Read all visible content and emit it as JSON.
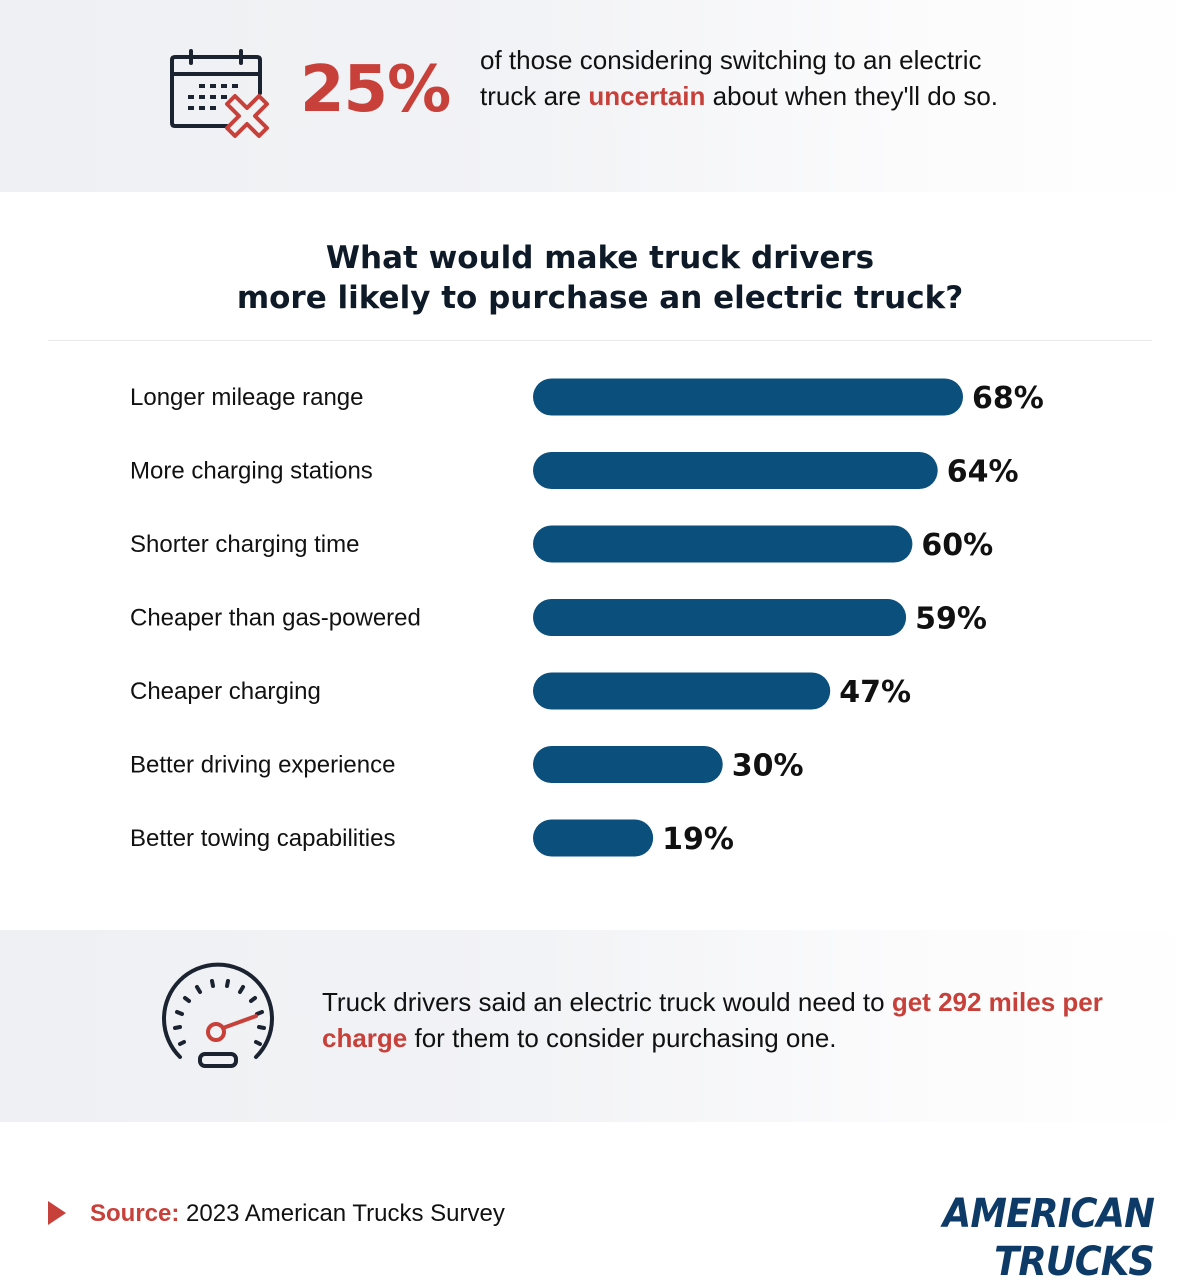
{
  "header_stat": {
    "icon": "calendar-x-icon",
    "value": "25%",
    "text_before": "of those considering switching to an electric truck are",
    "highlight": "uncertain",
    "text_after": "about when they'll do so."
  },
  "chart_data": {
    "type": "bar",
    "orientation": "horizontal",
    "title_line1": "What would make truck drivers",
    "title_line2": "more likely to purchase an electric truck?",
    "categories": [
      "Longer mileage range",
      "More charging stations",
      "Shorter charging time",
      "Cheaper than gas-powered",
      "Cheaper charging",
      "Better driving experience",
      "Better towing capabilities"
    ],
    "values": [
      68,
      64,
      60,
      59,
      47,
      30,
      19
    ],
    "value_labels": [
      "68%",
      "64%",
      "60%",
      "59%",
      "47%",
      "30%",
      "19%"
    ],
    "unit": "%",
    "bar_color": "#0b4f7c",
    "grid": false,
    "legend": "none"
  },
  "fact": {
    "icon": "speedometer-icon",
    "text_before": "Truck drivers said an electric truck would need to",
    "highlight": "get 292 miles per charge",
    "text_after": "for them to consider purchasing one."
  },
  "footer": {
    "source_label": "Source:",
    "source_text": "2023 American Trucks Survey",
    "brand": "AMERICAN TRUCKS"
  },
  "colors": {
    "accent": "#c8403a",
    "bar": "#0b4f7c",
    "brand": "#0d3a66",
    "icon": "#1b2230"
  }
}
